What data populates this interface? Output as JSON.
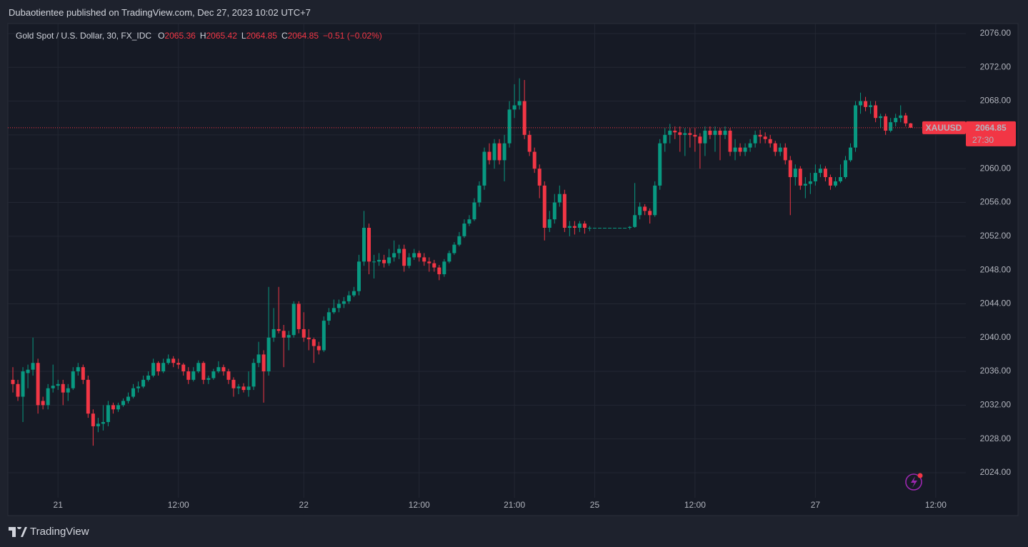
{
  "header": {
    "text": "Dubaotientee published on TradingView.com, Dec 27, 2023 10:02 UTC+7"
  },
  "footer": {
    "brand": "TradingView"
  },
  "chart_data": {
    "type": "candlestick",
    "title": "Gold Spot / U.S. Dollar, 30, FX_IDC",
    "legend_values": [
      {
        "label": "O",
        "value": 2065.36
      },
      {
        "label": "H",
        "value": 2065.42
      },
      {
        "label": "L",
        "value": 2064.85
      },
      {
        "label": "C",
        "value": 2064.85
      }
    ],
    "change": "−0.51 (−0.02%)",
    "symbol": "XAUUSD",
    "last_price": 2064.85,
    "countdown": "27:30",
    "up_color": "#089981",
    "down_color": "#f23645",
    "grid": true,
    "ylim": [
      2021.04,
      2077.18
    ],
    "yticks": [
      {
        "value": 2024,
        "label": "2024.00"
      },
      {
        "value": 2028,
        "label": "2028.00"
      },
      {
        "value": 2032,
        "label": "2032.00"
      },
      {
        "value": 2036,
        "label": "2036.00"
      },
      {
        "value": 2040,
        "label": "2040.00"
      },
      {
        "value": 2044,
        "label": "2044.00"
      },
      {
        "value": 2048,
        "label": "2048.00"
      },
      {
        "value": 2052,
        "label": "2052.00"
      },
      {
        "value": 2056,
        "label": "2056.00"
      },
      {
        "value": 2060,
        "label": "2060.00"
      },
      {
        "value": 2064,
        "label": "2064.00"
      },
      {
        "value": 2068,
        "label": "2068.00"
      },
      {
        "value": 2072,
        "label": "2072.00"
      },
      {
        "value": 2076,
        "label": "2076.00"
      }
    ],
    "xlim": [
      -1,
      190
    ],
    "xticks": [
      {
        "value": 9,
        "label": "21"
      },
      {
        "value": 33,
        "label": "12:00"
      },
      {
        "value": 58,
        "label": "22"
      },
      {
        "value": 81,
        "label": "12:00"
      },
      {
        "value": 100,
        "label": "21:00"
      },
      {
        "value": 116,
        "label": "25"
      },
      {
        "value": 136,
        "label": "12:00"
      },
      {
        "value": 160,
        "label": "27"
      },
      {
        "value": 184,
        "label": "12:00"
      }
    ],
    "ohlc": [
      [
        2035,
        2036.5,
        2033.5,
        2034.5
      ],
      [
        2034.5,
        2035,
        2032.5,
        2033
      ],
      [
        2033,
        2036.5,
        2030,
        2036
      ],
      [
        2035.8,
        2036.8,
        2034,
        2036.2
      ],
      [
        2036.2,
        2040,
        2035.5,
        2037
      ],
      [
        2037,
        2037.5,
        2031,
        2032
      ],
      [
        2032.5,
        2033,
        2031.5,
        2032
      ],
      [
        2032,
        2034.5,
        2031.5,
        2034
      ],
      [
        2034,
        2036.8,
        2033.5,
        2034.3
      ],
      [
        2034.3,
        2035,
        2033.8,
        2034.5
      ],
      [
        2034.5,
        2035,
        2032,
        2033.5
      ],
      [
        2033.5,
        2034.5,
        2032.5,
        2034
      ],
      [
        2034,
        2036.5,
        2033.8,
        2036
      ],
      [
        2036,
        2037,
        2035.5,
        2036.5
      ],
      [
        2036.5,
        2036.8,
        2034.5,
        2035
      ],
      [
        2035,
        2035.5,
        2030.5,
        2031
      ],
      [
        2031,
        2031.5,
        2027.2,
        2029.5
      ],
      [
        2029.5,
        2030.5,
        2028.8,
        2029.8
      ],
      [
        2029.8,
        2032,
        2029,
        2030
      ],
      [
        2030,
        2032.5,
        2029.5,
        2032
      ],
      [
        2032,
        2032.3,
        2031,
        2031.5
      ],
      [
        2031.5,
        2032.3,
        2031.2,
        2032
      ],
      [
        2032,
        2032.8,
        2031.8,
        2032.5
      ],
      [
        2032.5,
        2033.5,
        2032.2,
        2033
      ],
      [
        2033,
        2034.5,
        2032.8,
        2034
      ],
      [
        2034,
        2034.8,
        2033.5,
        2034.2
      ],
      [
        2034.2,
        2035.5,
        2034,
        2035
      ],
      [
        2035,
        2036,
        2034.8,
        2035.5
      ],
      [
        2035.5,
        2037.5,
        2035.3,
        2037
      ],
      [
        2037,
        2037.2,
        2035.5,
        2036
      ],
      [
        2036,
        2037.5,
        2035.8,
        2037
      ],
      [
        2037,
        2038,
        2036.8,
        2037.5
      ],
      [
        2037.5,
        2037.8,
        2036.5,
        2037
      ],
      [
        2037,
        2037.5,
        2036.3,
        2036.8
      ],
      [
        2036.8,
        2037,
        2035.5,
        2036
      ],
      [
        2036,
        2036.5,
        2034.5,
        2035
      ],
      [
        2035,
        2036.5,
        2034.8,
        2036
      ],
      [
        2036,
        2037.3,
        2035.8,
        2037
      ],
      [
        2037,
        2037.2,
        2034.5,
        2035
      ],
      [
        2035,
        2035.5,
        2034.5,
        2035.2
      ],
      [
        2035.2,
        2036.3,
        2035,
        2036
      ],
      [
        2036,
        2037.2,
        2035.8,
        2036.5
      ],
      [
        2036.5,
        2036.8,
        2035.5,
        2036
      ],
      [
        2036,
        2036.3,
        2034.5,
        2035
      ],
      [
        2035,
        2035.3,
        2033,
        2034
      ],
      [
        2034,
        2034.5,
        2033.3,
        2034.2
      ],
      [
        2034.2,
        2034.6,
        2033.5,
        2033.8
      ],
      [
        2033.8,
        2036,
        2033,
        2034.2
      ],
      [
        2034.2,
        2037.5,
        2033.8,
        2037
      ],
      [
        2037,
        2039.5,
        2036.5,
        2038
      ],
      [
        2038,
        2038.5,
        2032.3,
        2036
      ],
      [
        2036,
        2046,
        2035.5,
        2040
      ],
      [
        2040,
        2043.5,
        2039.5,
        2041
      ],
      [
        2041,
        2046,
        2040.5,
        2040.8
      ],
      [
        2040.8,
        2041.5,
        2036.5,
        2040
      ],
      [
        2040,
        2040.8,
        2038.5,
        2040.3
      ],
      [
        2040.3,
        2044.3,
        2040,
        2044
      ],
      [
        2044,
        2044.3,
        2040.5,
        2041
      ],
      [
        2041,
        2043,
        2039.5,
        2040
      ],
      [
        2040,
        2041,
        2038.5,
        2039.8
      ],
      [
        2039.8,
        2040,
        2037,
        2039
      ],
      [
        2039,
        2039.5,
        2038,
        2038.5
      ],
      [
        2038.5,
        2042.5,
        2038.3,
        2042
      ],
      [
        2042,
        2043.5,
        2041.5,
        2043
      ],
      [
        2043,
        2044.5,
        2042.8,
        2043.5
      ],
      [
        2043.5,
        2044.5,
        2043,
        2044
      ],
      [
        2044,
        2044.8,
        2043.5,
        2044.3
      ],
      [
        2044.3,
        2045.5,
        2044,
        2045
      ],
      [
        2045,
        2046,
        2044.8,
        2045.5
      ],
      [
        2045.5,
        2049.8,
        2045,
        2049
      ],
      [
        2049,
        2055,
        2048.5,
        2053
      ],
      [
        2053,
        2053.5,
        2047.5,
        2049
      ],
      [
        2049,
        2049.8,
        2047,
        2049
      ],
      [
        2049,
        2050,
        2048.5,
        2049.2
      ],
      [
        2049.2,
        2049.8,
        2048.3,
        2048.8
      ],
      [
        2048.8,
        2050.5,
        2048.5,
        2049.5
      ],
      [
        2049.5,
        2051.5,
        2049,
        2050
      ],
      [
        2050,
        2051,
        2049.3,
        2050.5
      ],
      [
        2050.5,
        2051,
        2047.8,
        2048.5
      ],
      [
        2048.5,
        2050,
        2048.2,
        2049.5
      ],
      [
        2049.5,
        2050.5,
        2049.2,
        2050
      ],
      [
        2050,
        2050.3,
        2049,
        2049.5
      ],
      [
        2049.5,
        2050,
        2048.5,
        2049
      ],
      [
        2049,
        2049.5,
        2047.8,
        2048.8
      ],
      [
        2048.8,
        2049.2,
        2047.8,
        2048.3
      ],
      [
        2048.3,
        2048.6,
        2046.8,
        2047.5
      ],
      [
        2047.5,
        2049.3,
        2047.2,
        2049
      ],
      [
        2049,
        2050.3,
        2048.8,
        2050
      ],
      [
        2050,
        2051.3,
        2049.8,
        2051
      ],
      [
        2051,
        2052.5,
        2050.8,
        2052
      ],
      [
        2052,
        2054,
        2051.8,
        2053.5
      ],
      [
        2053.5,
        2054.5,
        2053.2,
        2054
      ],
      [
        2054,
        2056.5,
        2053.8,
        2056
      ],
      [
        2056,
        2058.5,
        2055.5,
        2058
      ],
      [
        2058,
        2062.5,
        2057.5,
        2062
      ],
      [
        2062,
        2063,
        2060.5,
        2061
      ],
      [
        2061,
        2063.5,
        2060,
        2063
      ],
      [
        2063,
        2063.5,
        2060.5,
        2061
      ],
      [
        2061,
        2064,
        2058.5,
        2063
      ],
      [
        2063,
        2068,
        2062.5,
        2067
      ],
      [
        2067,
        2070,
        2066,
        2067.5
      ],
      [
        2067.5,
        2070.7,
        2067,
        2068
      ],
      [
        2068,
        2070.5,
        2063.5,
        2064
      ],
      [
        2064,
        2064.5,
        2061.5,
        2062
      ],
      [
        2062,
        2062.5,
        2059.5,
        2060
      ],
      [
        2060,
        2060.5,
        2056.5,
        2058
      ],
      [
        2058,
        2058.5,
        2051.5,
        2053
      ],
      [
        2053,
        2055,
        2052.5,
        2054
      ],
      [
        2054,
        2057,
        2053.5,
        2056
      ],
      [
        2056,
        2058,
        2055.5,
        2057
      ],
      [
        2057,
        2057.5,
        2052.5,
        2053
      ],
      [
        2053,
        2053.8,
        2052,
        2053.2
      ],
      [
        2053.2,
        2053.8,
        2052.2,
        2053
      ],
      [
        2053,
        2053.8,
        2052.5,
        2053.5
      ],
      [
        2053.5,
        2053.8,
        2052.3,
        2053
      ],
      [
        2053,
        2053.2,
        2052.6,
        2053
      ],
      [
        2053,
        2053,
        2053,
        2053
      ],
      [
        2053,
        2053,
        2053,
        2053
      ],
      [
        2053,
        2053,
        2053,
        2053
      ],
      [
        2053,
        2053,
        2053,
        2053
      ],
      [
        2053,
        2053,
        2053,
        2053
      ],
      [
        2053,
        2053,
        2053,
        2053
      ],
      [
        2053,
        2053,
        2053,
        2053
      ],
      [
        2053,
        2053.2,
        2052.8,
        2053.1
      ],
      [
        2053.1,
        2058.3,
        2053,
        2054.5
      ],
      [
        2054.5,
        2056,
        2054,
        2055.5
      ],
      [
        2055.5,
        2055.8,
        2054.5,
        2055
      ],
      [
        2055,
        2055.3,
        2053.5,
        2054.5
      ],
      [
        2054.5,
        2058.5,
        2054.3,
        2058
      ],
      [
        2058,
        2063.5,
        2057.5,
        2063
      ],
      [
        2063,
        2064.8,
        2062,
        2064
      ],
      [
        2064,
        2065.3,
        2063,
        2064.5
      ],
      [
        2064.5,
        2065,
        2063.5,
        2064.3
      ],
      [
        2064.3,
        2065,
        2062,
        2064
      ],
      [
        2064,
        2064.8,
        2061.5,
        2064.2
      ],
      [
        2064.2,
        2064.8,
        2062.5,
        2064
      ],
      [
        2064,
        2064.8,
        2062,
        2063.8
      ],
      [
        2063.8,
        2064.2,
        2060,
        2063
      ],
      [
        2063,
        2065,
        2061.5,
        2064.5
      ],
      [
        2064.5,
        2065,
        2063.5,
        2064
      ],
      [
        2064,
        2065,
        2062,
        2064.5
      ],
      [
        2064.5,
        2064.8,
        2061,
        2064
      ],
      [
        2064,
        2065,
        2063.5,
        2064.5
      ],
      [
        2064.5,
        2064.8,
        2061.5,
        2062
      ],
      [
        2062,
        2063.5,
        2061,
        2062.5
      ],
      [
        2062.5,
        2063,
        2061.5,
        2062
      ],
      [
        2062,
        2063,
        2061.5,
        2062.5
      ],
      [
        2062.5,
        2063.5,
        2062,
        2063
      ],
      [
        2063,
        2064.5,
        2062.5,
        2064
      ],
      [
        2064,
        2064.6,
        2063,
        2063.8
      ],
      [
        2063.8,
        2064.3,
        2063,
        2063.5
      ],
      [
        2063.5,
        2064,
        2062.5,
        2063
      ],
      [
        2063,
        2063.3,
        2061.5,
        2062
      ],
      [
        2062,
        2063,
        2061.5,
        2062.5
      ],
      [
        2062.5,
        2063,
        2060.5,
        2061
      ],
      [
        2061,
        2061.5,
        2054.5,
        2059
      ],
      [
        2059,
        2060.5,
        2058,
        2060
      ],
      [
        2060,
        2060.3,
        2057.5,
        2058
      ],
      [
        2058,
        2059,
        2056.5,
        2058.2
      ],
      [
        2058.2,
        2059.5,
        2057,
        2058.5
      ],
      [
        2058.5,
        2060.5,
        2058,
        2059.5
      ],
      [
        2059.5,
        2060.5,
        2059,
        2060
      ],
      [
        2060,
        2060.3,
        2058.5,
        2059
      ],
      [
        2059,
        2059.3,
        2057.5,
        2058
      ],
      [
        2058,
        2059,
        2057.8,
        2058.5
      ],
      [
        2058.5,
        2060.5,
        2058.3,
        2059
      ],
      [
        2059,
        2061.5,
        2058.8,
        2061
      ],
      [
        2061,
        2063,
        2060.8,
        2062.5
      ],
      [
        2062.5,
        2068,
        2062,
        2067.5
      ],
      [
        2067.5,
        2069,
        2066.5,
        2068
      ],
      [
        2068,
        2068.5,
        2066.8,
        2067.3
      ],
      [
        2067.3,
        2068,
        2066.5,
        2067.5
      ],
      [
        2067.5,
        2068,
        2065.5,
        2066
      ],
      [
        2066,
        2066.5,
        2064.8,
        2066.2
      ],
      [
        2066.2,
        2066.5,
        2064,
        2064.5
      ],
      [
        2064.5,
        2066,
        2064.3,
        2065.5
      ],
      [
        2065.5,
        2066.5,
        2065,
        2066
      ],
      [
        2066,
        2067.5,
        2065.5,
        2066.3
      ],
      [
        2066.3,
        2066.6,
        2065,
        2065.36
      ],
      [
        2065.36,
        2065.42,
        2064.85,
        2064.85
      ]
    ]
  }
}
